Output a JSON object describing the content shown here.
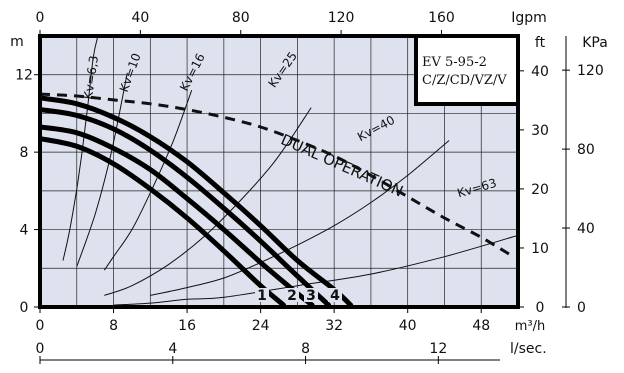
{
  "chart_data": {
    "type": "line",
    "model_box": {
      "line1": "EV 5-95-2",
      "line2": "C/Z/CD/VZ/V"
    },
    "bottom_axis": {
      "unit": "m³/h",
      "range": [
        0,
        52
      ],
      "ticks": [
        0,
        8,
        16,
        24,
        32,
        40,
        48
      ]
    },
    "bottom_axis2": {
      "unit": "l/sec.",
      "range": [
        0,
        14.4
      ],
      "ticks": [
        0,
        4,
        8,
        12
      ]
    },
    "top_axis": {
      "unit": "Igpm",
      "range": [
        0,
        190.5
      ],
      "ticks": [
        0,
        40,
        80,
        120,
        160
      ]
    },
    "left_axis": {
      "unit": "m",
      "range": [
        0,
        14
      ],
      "ticks": [
        0,
        4,
        8,
        12
      ]
    },
    "right_axis_ft": {
      "unit": "ft",
      "range": [
        0,
        45.9
      ],
      "ticks": [
        0,
        10,
        20,
        30,
        40
      ]
    },
    "right_axis_kpa": {
      "unit": "KPa",
      "range": [
        0,
        137.3
      ],
      "ticks": [
        0,
        40,
        80,
        120
      ]
    },
    "pump_curves": [
      {
        "name": "1",
        "x": [
          0,
          4,
          8,
          12,
          16,
          20,
          24,
          26.5
        ],
        "y": [
          8.7,
          8.3,
          7.4,
          6.1,
          4.6,
          2.9,
          1.1,
          0.1
        ]
      },
      {
        "name": "2",
        "x": [
          0,
          4,
          8,
          12,
          16,
          20,
          24,
          28,
          29.6
        ],
        "y": [
          9.3,
          9.0,
          8.2,
          7.1,
          5.6,
          4.0,
          2.3,
          0.7,
          0.1
        ]
      },
      {
        "name": "3",
        "x": [
          0,
          4,
          8,
          12,
          16,
          20,
          24,
          28,
          31.4
        ],
        "y": [
          10.2,
          9.9,
          9.2,
          8.1,
          6.7,
          5.1,
          3.4,
          1.6,
          0.1
        ]
      },
      {
        "name": "4",
        "x": [
          0,
          4,
          8,
          12,
          16,
          20,
          24,
          28,
          32,
          33.8
        ],
        "y": [
          10.8,
          10.5,
          9.8,
          8.8,
          7.5,
          5.9,
          4.2,
          2.4,
          0.9,
          0.1
        ]
      }
    ],
    "dual_operation": {
      "label": "DUAL OPERATION",
      "x": [
        0,
        4,
        8,
        12,
        16,
        20,
        24,
        28,
        32,
        36,
        40,
        44,
        48,
        51.5
      ],
      "y": [
        11.0,
        10.9,
        10.7,
        10.5,
        10.2,
        9.8,
        9.3,
        8.6,
        7.8,
        6.8,
        5.7,
        4.6,
        3.6,
        2.6
      ]
    },
    "kv_curves": [
      {
        "label": "Kv=6,3",
        "x": [
          2.5,
          3.2,
          4.0,
          4.6,
          5.2,
          5.8,
          6.3
        ],
        "y": [
          2.4,
          3.9,
          6.1,
          8.1,
          10.4,
          12.9,
          14.0
        ]
      },
      {
        "label": "Kv=10",
        "x": [
          4,
          5,
          6,
          7,
          8,
          9.5
        ],
        "y": [
          2.1,
          3.4,
          4.8,
          6.5,
          8.5,
          12.1
        ]
      },
      {
        "label": "Kv=16",
        "x": [
          7,
          8,
          10,
          12,
          14,
          15,
          16.5
        ],
        "y": [
          1.9,
          2.6,
          4.0,
          5.9,
          8.0,
          9.2,
          11.2
        ]
      },
      {
        "label": "Kv=25",
        "x": [
          7,
          10,
          14,
          18,
          22,
          25,
          27,
          29.5
        ],
        "y": [
          0.6,
          1.1,
          2.2,
          3.7,
          5.6,
          7.2,
          8.5,
          10.3
        ]
      },
      {
        "label": "Kv=40",
        "x": [
          12,
          16,
          20,
          24,
          28,
          32,
          36,
          40,
          44.5
        ],
        "y": [
          0.6,
          1.0,
          1.5,
          2.3,
          3.2,
          4.2,
          5.4,
          6.8,
          8.6
        ]
      },
      {
        "label": "Kv=63",
        "x": [
          8,
          12,
          16,
          20,
          28,
          36,
          44,
          52
        ],
        "y": [
          0.1,
          0.2,
          0.4,
          0.5,
          1.1,
          1.7,
          2.6,
          3.7
        ]
      }
    ],
    "grid": true
  }
}
